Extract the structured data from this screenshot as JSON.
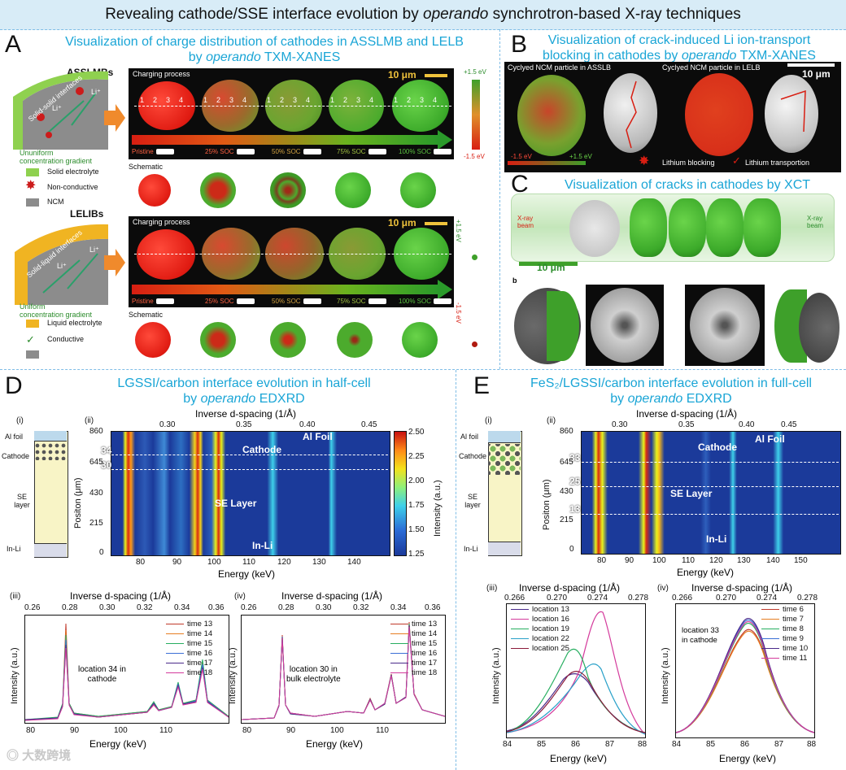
{
  "header": {
    "title_prefix": "Revealing cathode/SSE interface evolution by",
    "title_italic": "operando",
    "title_suffix": "synchrotron-based X-ray techniques"
  },
  "panel_a": {
    "letter": "A",
    "title_line1": "Visualization of charge distribution of cathodes in ASSLMB and LELB",
    "title_line2_prefix": "by",
    "title_line2_italic": "operando",
    "title_line2_suffix": "TXM-XANES",
    "asslmb_label": "ASSLMBs",
    "interfaces_solid": "Solid-solid interfaces",
    "li_ion": "Li⁺",
    "uniform_top": "Ununiform",
    "gradient_top": "concentration gradient",
    "legend_solid": "Solid electrolyte",
    "legend_nonconductive": "Non-conductive",
    "legend_ncm": "NCM",
    "lelib_label": "LELIBs",
    "interfaces_liquid": "Solid-liquid interfaces",
    "uniform_bottom": "Uniform",
    "gradient_bottom": "concentration gradient",
    "legend_liquid": "Liquid electrolyte",
    "legend_conductive": "Conductive",
    "charging_process": "Charging process",
    "scale_bar": "10 μm",
    "positions": [
      "1",
      "2",
      "3",
      "4"
    ],
    "soc_labels": [
      "Pristine",
      "25% SOC",
      "50% SOC",
      "75% SOC",
      "100% SOC"
    ],
    "schematic": "Schematic",
    "energy_top": "+1.5 eV",
    "energy_bottom": "-1.5 eV"
  },
  "panel_b": {
    "letter": "B",
    "title_line1": "Visualization of crack-induced Li ion-transport",
    "title_line2_prefix": "blocking in cathodes by",
    "title_line2_italic": "operando",
    "title_line2_suffix": "TXM-XANES",
    "label_left": "Cyclyed NCM particle in ASSLB",
    "label_right": "Cyclyed NCM particle in LELB",
    "scale_bar": "10 μm",
    "cb_left": "-1.5 eV",
    "cb_right": "+1.5 eV",
    "legend_blocking": "Lithium blocking",
    "legend_transport": "Lithium transportion"
  },
  "panel_c": {
    "letter": "C",
    "title": "Visualization of cracks in cathodes by XCT",
    "xray_in": "X-ray beam",
    "xray_out": "X-ray beam",
    "scale_bar": "10 μm",
    "sub_b": "b"
  },
  "panel_d": {
    "letter": "D",
    "title_line1": "LGSSI/carbon interface evolution in half-cell",
    "title_line2_prefix": "by",
    "title_line2_italic": "operando",
    "title_line2_suffix": "EDXRD",
    "sub_i": "(i)",
    "sub_ii": "(ii)",
    "sub_iii": "(iii)",
    "sub_iv": "(iv)",
    "cell_labels": [
      "Al foil",
      "Cathode",
      "SE layer",
      "In-Li"
    ],
    "inv_d_label": "Inverse d-spacing (1/Å)",
    "inv_d_ticks": [
      "0.30",
      "0.35",
      "0.40",
      "0.45"
    ],
    "pos_label": "Positon (μm)",
    "pos_ticks": [
      "860",
      "645",
      "430",
      "215",
      "0"
    ],
    "energy_label": "Energy (keV)",
    "energy_ticks": [
      "80",
      "90",
      "100",
      "110",
      "120",
      "130",
      "140"
    ],
    "map_labels": {
      "cathode": "Cathode",
      "al_foil": "Al Foil",
      "se_layer": "SE Layer",
      "in_li": "In-Li",
      "loc34": "34",
      "loc30": "30"
    },
    "cbar_label": "Intensity (a.u.)",
    "cbar_ticks": [
      "2.50",
      "2.25",
      "2.00",
      "1.75",
      "1.50",
      "1.25"
    ],
    "iii": {
      "inv_d_label": "Inverse d-spacing (1/Å)",
      "inv_d_ticks": [
        "0.26",
        "0.28",
        "0.30",
        "0.32",
        "0.34",
        "0.36"
      ],
      "ylabel": "Intensity (a.u.)",
      "xlabel": "Energy (keV)",
      "x_ticks": [
        "80",
        "90",
        "100",
        "110"
      ],
      "annotation_line1": "location 34 in",
      "annotation_line2": "cathode",
      "legend": [
        "time 13",
        "time 14",
        "time 15",
        "time 16",
        "time 17",
        "time 18"
      ]
    },
    "iv": {
      "inv_d_label": "Inverse d-spacing (1/Å)",
      "inv_d_ticks": [
        "0.26",
        "0.28",
        "0.30",
        "0.32",
        "0.34",
        "0.36"
      ],
      "ylabel": "Intensity (a.u.)",
      "xlabel": "Energy (keV)",
      "x_ticks": [
        "80",
        "90",
        "100",
        "110"
      ],
      "annotation_line1": "location 30 in",
      "annotation_line2": "bulk electrolyte",
      "legend": [
        "time 13",
        "time 14",
        "time 15",
        "time 16",
        "time 17",
        "time 18"
      ]
    }
  },
  "panel_e": {
    "letter": "E",
    "title_line1": "FeS₂/LGSSI/carbon interface evolution in full-cell",
    "title_line2_prefix": "by",
    "title_line2_italic": "operando",
    "title_line2_suffix": "EDXRD",
    "sub_i": "(i)",
    "sub_ii": "(ii)",
    "sub_iii": "(iii)",
    "sub_iv": "(iv)",
    "cell_labels": [
      "Al foil",
      "Cathode",
      "SE layer",
      "In-Li"
    ],
    "inv_d_label": "Inverse d-spacing (1/Å)",
    "inv_d_ticks": [
      "0.30",
      "0.35",
      "0.40",
      "0.45"
    ],
    "pos_label": "Positon (μm)",
    "pos_ticks": [
      "860",
      "645",
      "430",
      "215",
      "0"
    ],
    "energy_label": "Energy (keV)",
    "energy_ticks": [
      "80",
      "90",
      "100",
      "110",
      "120",
      "130",
      "140",
      "150"
    ],
    "map_labels": {
      "cathode": "Cathode",
      "al_foil": "Al Foil",
      "se_layer": "SE Layer",
      "in_li": "In-Li",
      "loc33": "33",
      "loc25": "25",
      "loc13": "13"
    },
    "iii": {
      "inv_d_label": "Inverse d-spacing (1/Å)",
      "inv_d_ticks": [
        "0.266",
        "0.270",
        "0.274",
        "0.278"
      ],
      "ylabel": "Intensity (a.u.)",
      "xlabel": "Energy (keV)",
      "x_ticks": [
        "84",
        "85",
        "86",
        "87",
        "88"
      ],
      "legend": [
        "location 13",
        "location 16",
        "location 19",
        "location 22",
        "location 25"
      ]
    },
    "iv": {
      "inv_d_label": "Inverse d-spacing (1/Å)",
      "inv_d_ticks": [
        "0.266",
        "0.270",
        "0.274",
        "0.278"
      ],
      "ylabel": "Intensity (a.u.)",
      "xlabel": "Energy (keV)",
      "x_ticks": [
        "84",
        "85",
        "86",
        "87",
        "88"
      ],
      "annotation_line1": "location 33",
      "annotation_line2": "in cathode",
      "legend": [
        "time 6",
        "time 7",
        "time 8",
        "time 9",
        "time 10",
        "time 11"
      ]
    }
  },
  "watermark": "大数跨境",
  "colors": {
    "accent_cyan": "#1aa5d6",
    "series_time": [
      "#c0392b",
      "#e67e22",
      "#27ae60",
      "#3b6fd6",
      "#4a2a8a",
      "#d43b9c"
    ],
    "series_location": [
      "#4a2a8a",
      "#d43b9c",
      "#27ae60",
      "#2aa1c9",
      "#8b1a3a"
    ]
  }
}
